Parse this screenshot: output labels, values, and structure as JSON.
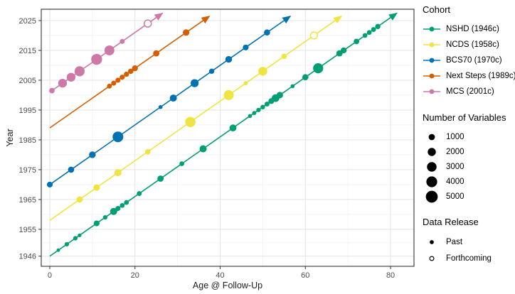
{
  "chart_data": {
    "type": "scatter",
    "xlabel": "Age @ Follow-Up",
    "ylabel": "Year",
    "x_ticks": [
      0,
      20,
      40,
      60,
      80
    ],
    "y_ticks": [
      1946,
      1955,
      1965,
      1975,
      1985,
      1995,
      2005,
      2015,
      2025
    ],
    "x_minor": [
      10,
      30,
      50,
      70
    ],
    "y_minor": [
      1950.5,
      1960,
      1970,
      1980,
      1990,
      2000,
      2010,
      2020
    ],
    "xlim": [
      -2,
      85.5
    ],
    "ylim": [
      1942.6,
      2028.8
    ],
    "grid": true,
    "series": [
      {
        "name": "NSHD (1946c)",
        "birth_year": 1946,
        "color": "#009E73",
        "arrow_end_age": 81.5,
        "points": [
          {
            "age": 2,
            "n": 150
          },
          {
            "age": 4,
            "n": 350
          },
          {
            "age": 6,
            "n": 350
          },
          {
            "age": 7,
            "n": 200
          },
          {
            "age": 11,
            "n": 800
          },
          {
            "age": 13,
            "n": 350
          },
          {
            "age": 15,
            "n": 1400
          },
          {
            "age": 16,
            "n": 550
          },
          {
            "age": 17,
            "n": 450
          },
          {
            "age": 18,
            "n": 450
          },
          {
            "age": 21,
            "n": 500
          },
          {
            "age": 26,
            "n": 1000
          },
          {
            "age": 31,
            "n": 450
          },
          {
            "age": 36,
            "n": 1400
          },
          {
            "age": 43,
            "n": 1300
          },
          {
            "age": 47,
            "n": 250
          },
          {
            "age": 48,
            "n": 300
          },
          {
            "age": 49,
            "n": 350
          },
          {
            "age": 50,
            "n": 400
          },
          {
            "age": 51,
            "n": 500
          },
          {
            "age": 52,
            "n": 800
          },
          {
            "age": 53,
            "n": 1700
          },
          {
            "age": 54,
            "n": 1100
          },
          {
            "age": 57,
            "n": 250
          },
          {
            "age": 60,
            "n": 950
          },
          {
            "age": 63,
            "n": 3400
          },
          {
            "age": 68,
            "n": 1000
          },
          {
            "age": 69,
            "n": 850
          },
          {
            "age": 72,
            "n": 700
          },
          {
            "age": 74,
            "n": 450
          },
          {
            "age": 75,
            "n": 450
          },
          {
            "age": 76,
            "n": 500
          },
          {
            "age": 77,
            "n": 600
          }
        ]
      },
      {
        "name": "NCDS (1958c)",
        "birth_year": 1958,
        "color": "#F0E442",
        "arrow_end_age": 68.5,
        "points": [
          {
            "age": 7,
            "n": 1000
          },
          {
            "age": 11,
            "n": 1100
          },
          {
            "age": 16,
            "n": 1400
          },
          {
            "age": 23,
            "n": 700
          },
          {
            "age": 33,
            "n": 3600
          },
          {
            "age": 42,
            "n": 3300
          },
          {
            "age": 46,
            "n": 300
          },
          {
            "age": 50,
            "n": 2500
          },
          {
            "age": 55,
            "n": 650
          },
          {
            "age": 62,
            "n": 1300,
            "release": "forthcoming"
          }
        ]
      },
      {
        "name": "BCS70 (1970c)",
        "birth_year": 1970,
        "color": "#0072B2",
        "arrow_end_age": 56.5,
        "points": [
          {
            "age": 0,
            "n": 800
          },
          {
            "age": 5,
            "n": 950
          },
          {
            "age": 10,
            "n": 1200
          },
          {
            "age": 16,
            "n": 3900
          },
          {
            "age": 26,
            "n": 250
          },
          {
            "age": 29,
            "n": 1400
          },
          {
            "age": 34,
            "n": 1900
          },
          {
            "age": 38,
            "n": 600
          },
          {
            "age": 42,
            "n": 1200
          },
          {
            "age": 46,
            "n": 800
          },
          {
            "age": 51,
            "n": 950
          }
        ]
      },
      {
        "name": "Next Steps (1989c)",
        "birth_year": 1989,
        "color": "#D55E00",
        "arrow_end_age": 37.5,
        "points": [
          {
            "age": 14,
            "n": 500
          },
          {
            "age": 15,
            "n": 520
          },
          {
            "age": 16,
            "n": 540
          },
          {
            "age": 17,
            "n": 560
          },
          {
            "age": 18,
            "n": 580
          },
          {
            "age": 19,
            "n": 650
          },
          {
            "age": 20,
            "n": 850
          },
          {
            "age": 25,
            "n": 1000
          },
          {
            "age": 32,
            "n": 1100
          }
        ]
      },
      {
        "name": "MCS (2001c)",
        "birth_year": 2001,
        "color": "#CC79A7",
        "arrow_end_age": 26.5,
        "points": [
          {
            "age": 0.5,
            "n": 700
          },
          {
            "age": 3,
            "n": 2400
          },
          {
            "age": 5,
            "n": 2400
          },
          {
            "age": 7,
            "n": 3400
          },
          {
            "age": 11,
            "n": 4100
          },
          {
            "age": 14,
            "n": 3200
          },
          {
            "age": 17,
            "n": 500
          },
          {
            "age": 23,
            "n": 1400,
            "release": "forthcoming"
          }
        ]
      }
    ]
  },
  "legend": {
    "cohort_title": "Cohort",
    "size_title": "Number of Variables",
    "size_values": [
      1000,
      2000,
      3000,
      4000,
      5000
    ],
    "release_title": "Data Release",
    "release_items": [
      {
        "label": "Past",
        "filled": true
      },
      {
        "label": "Forthcoming",
        "filled": false
      }
    ]
  },
  "colors": {
    "grid_major": "#e3e3e3",
    "grid_minor": "#f1f1f1",
    "panel_border": "#333333",
    "tick_text": "#4d4d4d",
    "legend_dot": "#000000"
  }
}
